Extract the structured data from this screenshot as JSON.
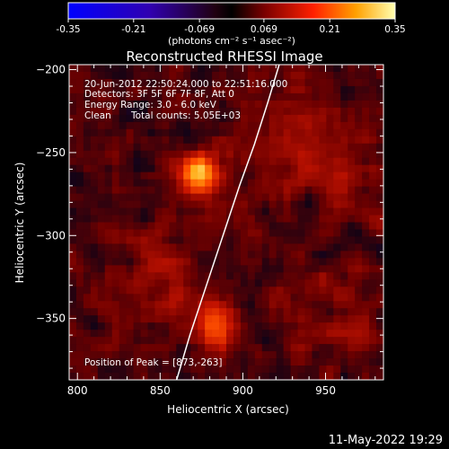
{
  "chart_data": {
    "type": "heatmap",
    "title": "Reconstructed RHESSI Image",
    "xlabel": "Heliocentric X (arcsec)",
    "ylabel": "Heliocentric Y (arcsec)",
    "xlim": [
      795,
      985
    ],
    "ylim": [
      -387,
      -197
    ],
    "x_ticks": [
      800,
      850,
      900,
      950
    ],
    "y_ticks": [
      -200,
      -250,
      -300,
      -350
    ],
    "colorbar": {
      "ticks": [
        "-0.35",
        "-0.21",
        "-0.069",
        "0.069",
        "0.21",
        "0.35"
      ],
      "range": [
        -0.35,
        0.35
      ],
      "label": "(photons cm⁻² s⁻¹ asec⁻²)"
    },
    "annotations": [
      "20-Jun-2012 22:50:24.000 to 22:51:16.000",
      "Detectors: 3F 5F 6F 7F 8F, Att 0",
      "Energy Range: 3.0 - 6.0 keV",
      "Clean",
      "Total counts: 5.05E+03"
    ],
    "peak_label": "Position of Peak = [873,-263]",
    "peaks": [
      {
        "x": 873,
        "y": -263,
        "value": 0.35
      },
      {
        "x": 882,
        "y": -355,
        "value": 0.26
      }
    ],
    "limb_points": [
      [
        860,
        -387
      ],
      [
        868,
        -360
      ],
      [
        878,
        -330
      ],
      [
        888,
        -300
      ],
      [
        898,
        -270
      ],
      [
        907,
        -245
      ],
      [
        915,
        -220
      ],
      [
        922,
        -197
      ]
    ]
  },
  "footer_timestamp": "11-May-2022 19:29"
}
